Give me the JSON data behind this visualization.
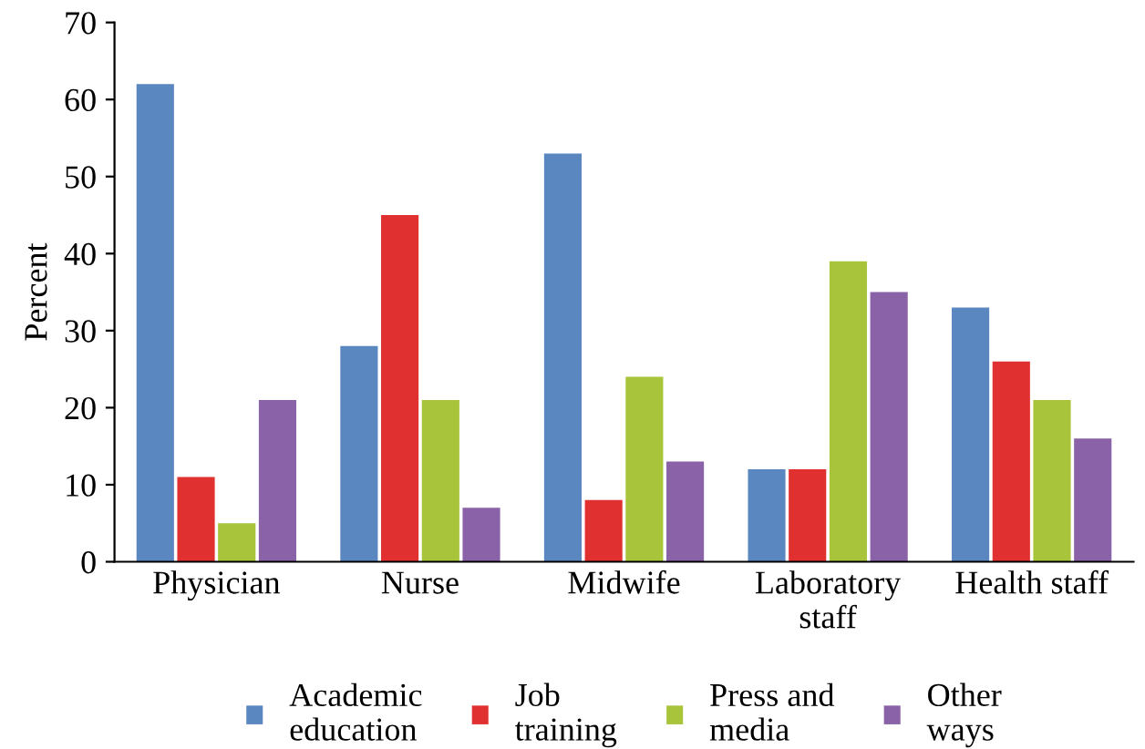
{
  "chart_data": {
    "type": "bar",
    "ylabel": "Percent",
    "categories": [
      "Physician",
      "Nurse",
      "Midwife",
      "Laboratory\nstaff",
      "Health staff"
    ],
    "series": [
      {
        "name": "Academic\neducation",
        "color": "#5b87c0",
        "values": [
          62,
          28,
          53,
          12,
          33
        ]
      },
      {
        "name": "Job\ntraining",
        "color": "#e03030",
        "values": [
          11,
          45,
          8,
          12,
          26
        ]
      },
      {
        "name": "Press and\nmedia",
        "color": "#a8c43a",
        "values": [
          5,
          21,
          24,
          39,
          21
        ]
      },
      {
        "name": "Other\nways",
        "color": "#8a62a8",
        "values": [
          21,
          7,
          13,
          35,
          16
        ]
      }
    ],
    "ylim": [
      0,
      70
    ],
    "yticks": [
      0,
      10,
      20,
      30,
      40,
      50,
      60,
      70
    ],
    "grid": false,
    "legend": "bottom"
  }
}
